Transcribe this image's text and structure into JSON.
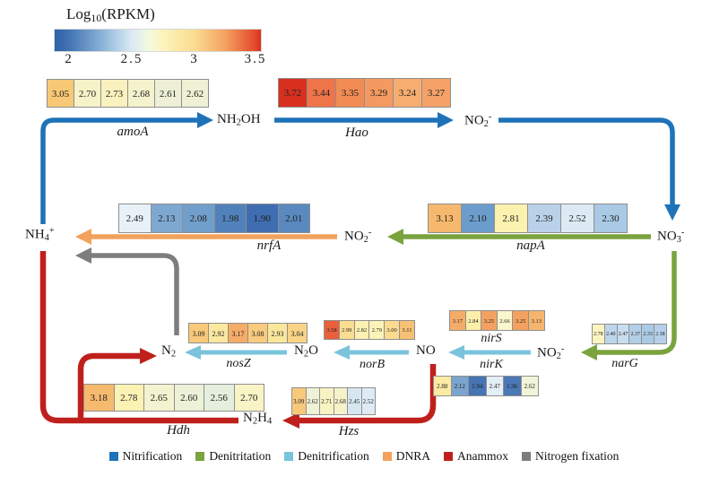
{
  "colorbar": {
    "title_parts": [
      {
        "t": "Log"
      },
      {
        "t": "10",
        "m": "sub"
      },
      {
        "t": "(RPKM)"
      }
    ],
    "ticks": [
      "2",
      "2.5",
      "3",
      "3.5"
    ],
    "gradient": [
      "#3060A8 0%",
      "#4273B4 7%",
      "#85AFD6 22%",
      "#D9E9F4 37%",
      "#F5FADE 46%",
      "#FCF3BA 53%",
      "#FBDC90 68%",
      "#F3A160 83%",
      "#E44A2C 97%",
      "#D93221 100%"
    ]
  },
  "processes": {
    "nitrification": {
      "label": "Nitrification",
      "color": "#1E73B8"
    },
    "denitritation": {
      "label": "Denitritation",
      "color": "#7AA33E"
    },
    "denitrification": {
      "label": "Denitrification",
      "color": "#7AC3DC"
    },
    "dnra": {
      "label": "DNRA",
      "color": "#F2A25C"
    },
    "anammox": {
      "label": "Anammox",
      "color": "#C0201C"
    },
    "nitrogen_fixation": {
      "label": "Nitrogen fixation",
      "color": "#7D7D7D"
    }
  },
  "legend_order": [
    "nitrification",
    "denitritation",
    "denitrification",
    "dnra",
    "anammox",
    "nitrogen_fixation"
  ],
  "genes": {
    "amoA": {
      "label": "amoA",
      "values": [
        "3.05",
        "2.70",
        "2.73",
        "2.68",
        "2.61",
        "2.62"
      ],
      "colors": [
        "#F7C876",
        "#F7F3C8",
        "#FAF2BE",
        "#F5F3CD",
        "#EDF0D6",
        "#EFF1D4"
      ]
    },
    "Hao": {
      "label": "Hao",
      "values": [
        "3.72",
        "3.44",
        "3.35",
        "3.29",
        "3.24",
        "3.27"
      ],
      "colors": [
        "#D7301F",
        "#EE744A",
        "#F28C54",
        "#F49A60",
        "#F7AC70",
        "#F5A167"
      ]
    },
    "nrfA": {
      "label": "nrfA",
      "values": [
        "2.49",
        "2.13",
        "2.08",
        "1.98",
        "1.90",
        "2.01"
      ],
      "colors": [
        "#E9F1F8",
        "#7FA8D1",
        "#719FCC",
        "#5081BB",
        "#3E6DB1",
        "#5A89C0"
      ]
    },
    "napA": {
      "label": "napA",
      "values": [
        "3.13",
        "2.10",
        "2.81",
        "2.39",
        "2.52",
        "2.30"
      ],
      "colors": [
        "#F6B86C",
        "#6C9CCB",
        "#FBF2B0",
        "#B9D2E9",
        "#DCEAF4",
        "#A9C9E4"
      ]
    },
    "nosZ": {
      "label": "nosZ",
      "values": [
        "3.09",
        "2.92",
        "3.17",
        "3.08",
        "2.93",
        "3.04"
      ],
      "colors": [
        "#F8C97B",
        "#FBE89E",
        "#F5AC69",
        "#F8CB7E",
        "#FBE79C",
        "#F9D487"
      ]
    },
    "norB": {
      "label": "norB",
      "values": [
        "3.58",
        "2.99",
        "2.82",
        "2.79",
        "3.00",
        "3.11"
      ],
      "colors": [
        "#E9603A",
        "#FBDD92",
        "#FCF1B1",
        "#FCF3B8",
        "#FBDB90",
        "#F7C175"
      ]
    },
    "nirS": {
      "label": "nirS",
      "values": [
        "3.17",
        "2.84",
        "3.25",
        "2.66",
        "3.25",
        "3.13"
      ],
      "colors": [
        "#F5AC69",
        "#FCEFAC",
        "#F3A160",
        "#FAF6CE",
        "#F3A160",
        "#F6B56C"
      ]
    },
    "nirK": {
      "label": "nirK",
      "values": [
        "2.88",
        "2.12",
        "1.94",
        "2.47",
        "1.96",
        "2.62"
      ],
      "colors": [
        "#FBEBA3",
        "#7BA5CF",
        "#4674B4",
        "#E4EEF7",
        "#4B78B6",
        "#F2F4D8"
      ]
    },
    "narG": {
      "label": "narG",
      "values": [
        "2.78",
        "2.40",
        "2.47",
        "2.37",
        "2.33",
        "2.38"
      ],
      "colors": [
        "#FBF4C0",
        "#BDD6EB",
        "#C8DDEF",
        "#B3CFE7",
        "#AACAE4",
        "#B5D0E8"
      ]
    },
    "Hdh": {
      "label": "Hdh",
      "values": [
        "3.18",
        "2.78",
        "2.65",
        "2.60",
        "2.56",
        "2.70"
      ],
      "colors": [
        "#F6BA6E",
        "#FBF2B4",
        "#F3F3D0",
        "#EDF1D7",
        "#E6EEDD",
        "#F8F4C6"
      ]
    },
    "Hzs": {
      "label": "Hzs",
      "values": [
        "3.09",
        "2.62",
        "2.71",
        "2.68",
        "2.45",
        "2.52"
      ],
      "colors": [
        "#F8C97B",
        "#F0F2D5",
        "#F9F3C3",
        "#F6F3CB",
        "#D7E7F2",
        "#DFEBF4"
      ]
    }
  },
  "species": {
    "nh4": {
      "parts": [
        {
          "t": "NH"
        },
        {
          "t": "4",
          "m": "sub"
        },
        {
          "t": "+",
          "m": "sup"
        }
      ]
    },
    "nh2oh": {
      "parts": [
        {
          "t": "NH"
        },
        {
          "t": "2",
          "m": "sub"
        },
        {
          "t": "OH"
        }
      ]
    },
    "no2": {
      "parts": [
        {
          "t": "NO"
        },
        {
          "t": "2",
          "m": "sub"
        },
        {
          "t": "-",
          "m": "sup"
        }
      ]
    },
    "no3": {
      "parts": [
        {
          "t": "NO"
        },
        {
          "t": "3",
          "m": "sub"
        },
        {
          "t": "-",
          "m": "sup"
        }
      ]
    },
    "n2": {
      "parts": [
        {
          "t": "N"
        },
        {
          "t": "2",
          "m": "sub"
        }
      ]
    },
    "n2o": {
      "parts": [
        {
          "t": "N"
        },
        {
          "t": "2",
          "m": "sub"
        },
        {
          "t": "O"
        }
      ]
    },
    "no": {
      "parts": [
        {
          "t": "NO"
        }
      ]
    },
    "n2h4": {
      "parts": [
        {
          "t": "N"
        },
        {
          "t": "2",
          "m": "sub"
        },
        {
          "t": "H"
        },
        {
          "t": "4",
          "m": "sub"
        }
      ]
    }
  }
}
